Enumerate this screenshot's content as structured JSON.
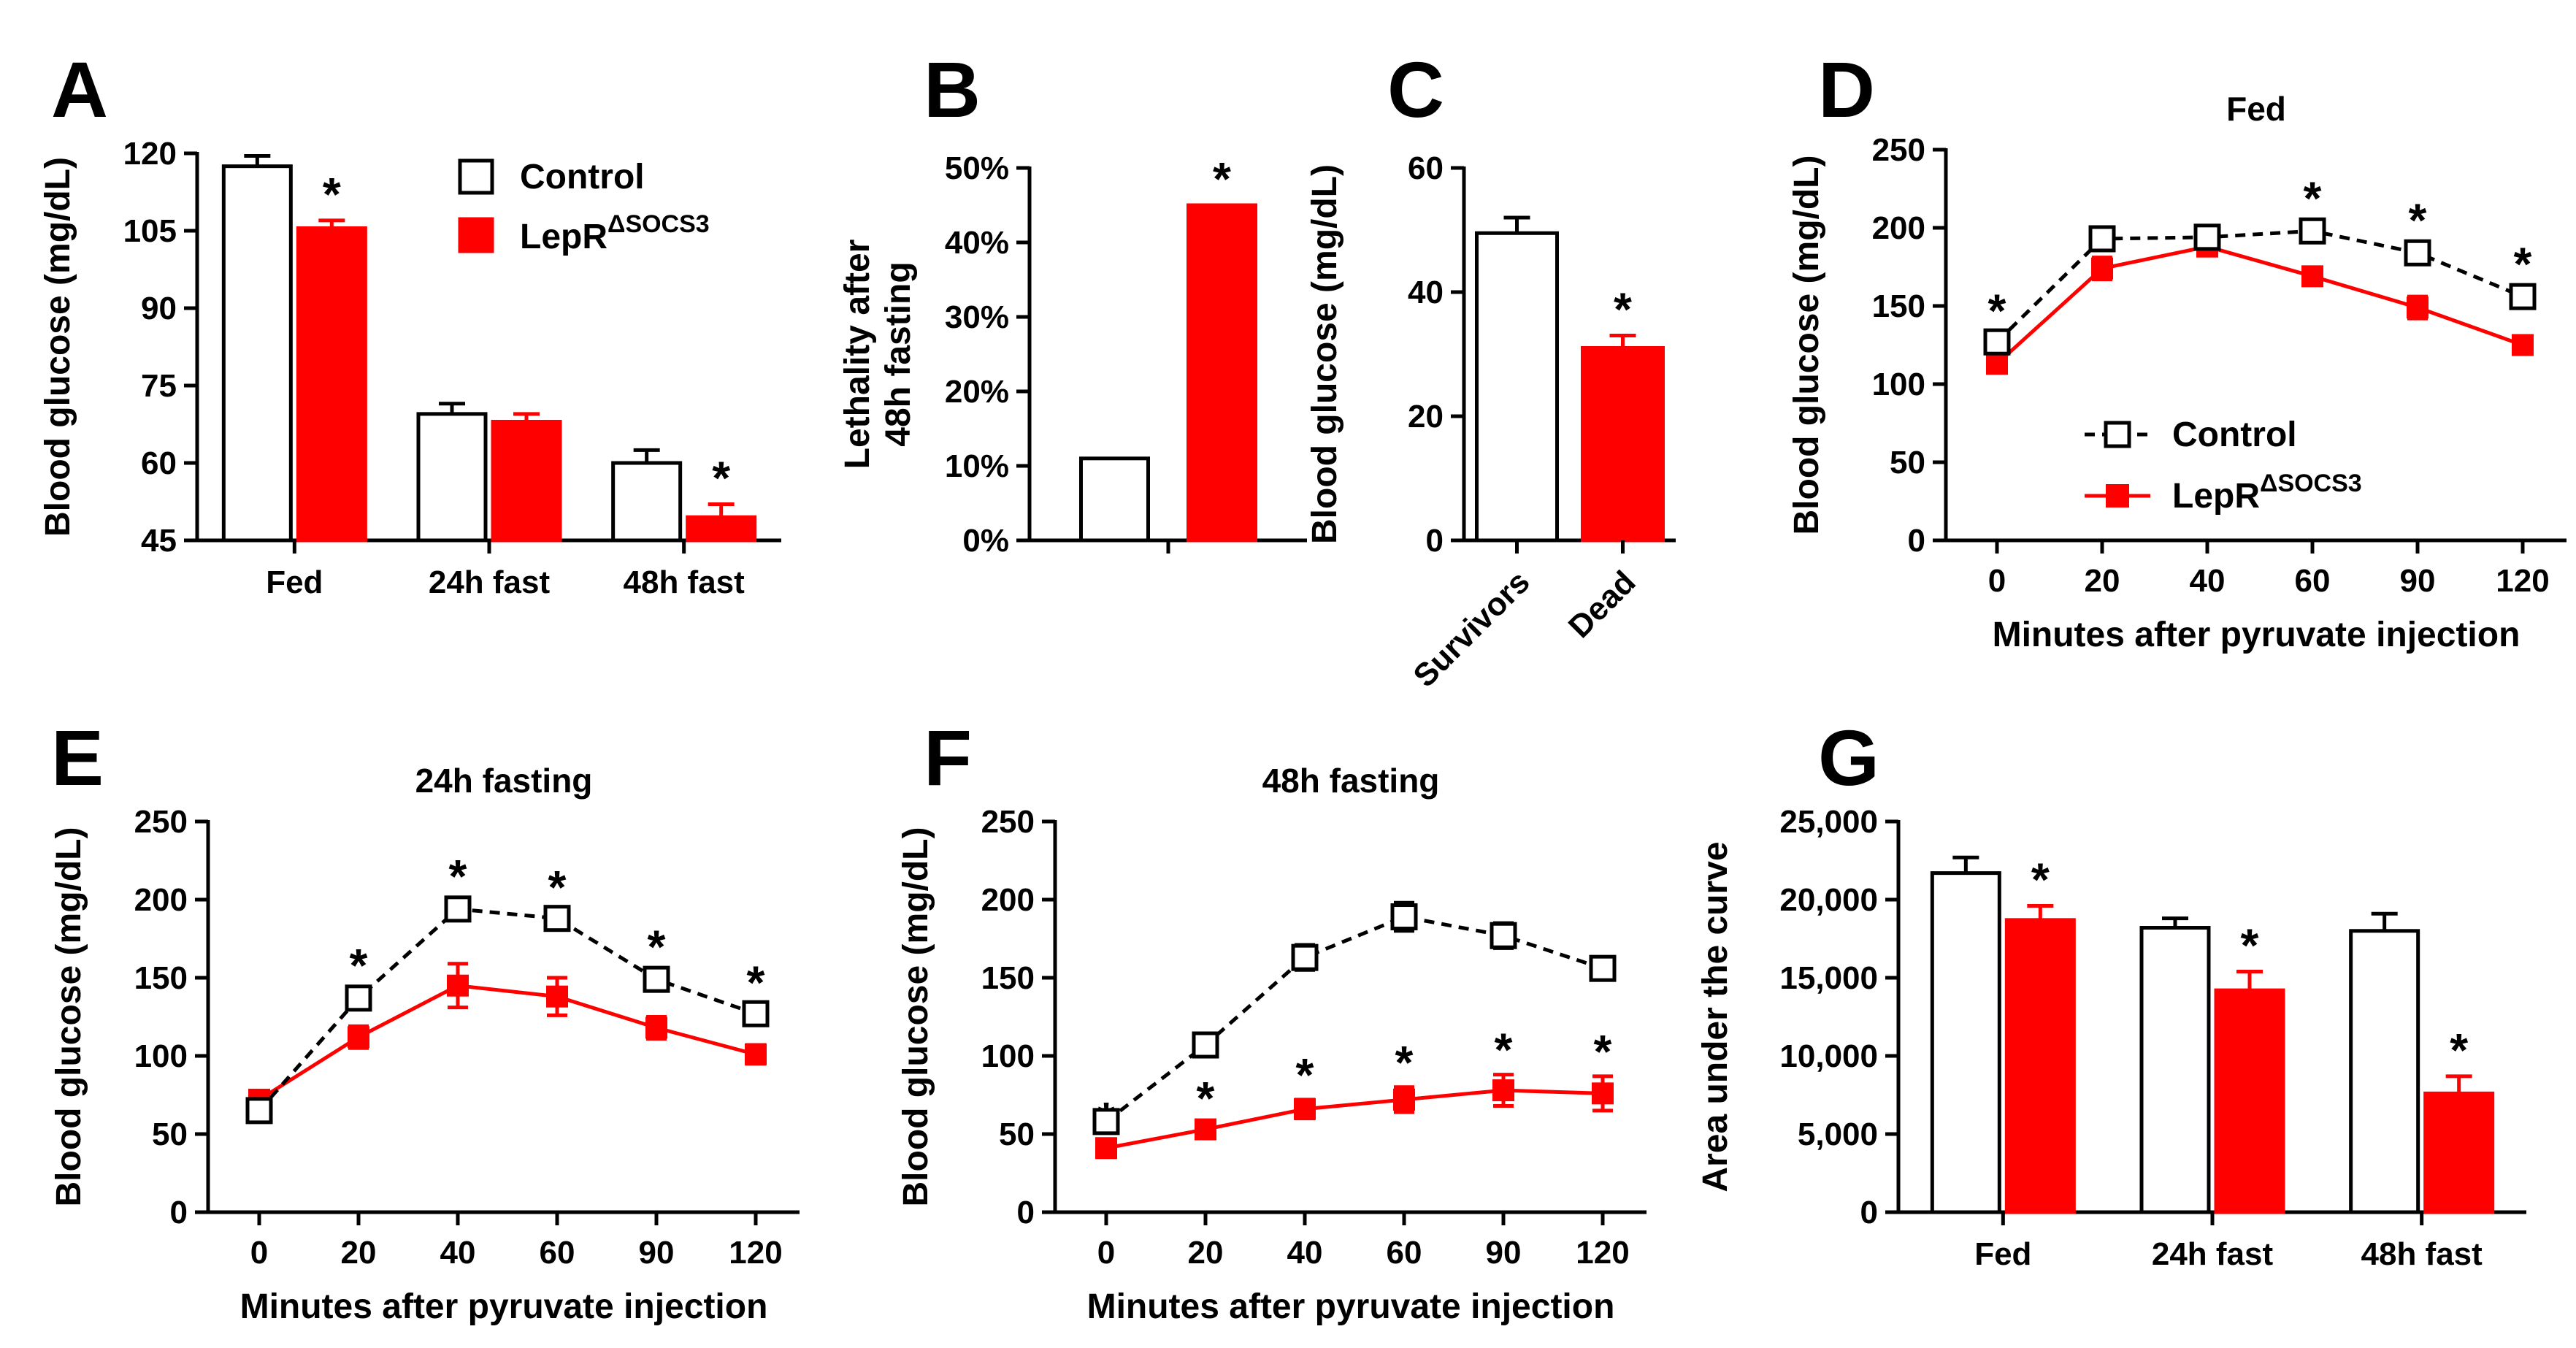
{
  "colors": {
    "control": "#000000",
    "mutant": "#ff0000",
    "control_fill": "#ffffff"
  },
  "legend": {
    "control": "Control",
    "mutant_base": "LepR",
    "mutant_sup": "ΔSOCS3"
  },
  "chart_data": [
    {
      "id": "A",
      "panel_label": "A",
      "type": "bar",
      "title": "",
      "xlabel": "",
      "ylabel": "Blood glucose (mg/dL)",
      "ylim": [
        45,
        120
      ],
      "yticks": [
        "45",
        "60",
        "75",
        "90",
        "105",
        "120"
      ],
      "categories": [
        "Fed",
        "24h fast",
        "48h fast"
      ],
      "series": [
        {
          "name": "Control",
          "values": [
            117.5,
            69.5,
            60
          ],
          "err": [
            2,
            2,
            2.5
          ],
          "sig": [
            false,
            false,
            false
          ]
        },
        {
          "name": "LepRΔSOCS3",
          "values": [
            105.5,
            68,
            49.5
          ],
          "err": [
            1.5,
            1.5,
            2.5
          ],
          "sig": [
            true,
            false,
            true
          ]
        }
      ]
    },
    {
      "id": "B",
      "panel_label": "B",
      "type": "bar",
      "title": "",
      "xlabel": "",
      "ylabel": [
        "Lethality after",
        "48h fasting"
      ],
      "ylim": [
        0,
        50
      ],
      "yticks": [
        "0%",
        "10%",
        "20%",
        "30%",
        "40%",
        "50%"
      ],
      "categories": [
        ""
      ],
      "series": [
        {
          "name": "Control",
          "values": [
            11
          ],
          "err": [
            0
          ],
          "sig": [
            false
          ]
        },
        {
          "name": "LepRΔSOCS3",
          "values": [
            45
          ],
          "err": [
            0
          ],
          "sig": [
            true
          ]
        }
      ]
    },
    {
      "id": "C",
      "panel_label": "C",
      "type": "bar",
      "title": "",
      "xlabel": "",
      "ylabel": "Blood glucose (mg/dL)",
      "ylim": [
        0,
        60
      ],
      "yticks": [
        "0",
        "20",
        "40",
        "60"
      ],
      "categories": [
        "Survivors",
        "Dead"
      ],
      "values": [
        49.5,
        31
      ],
      "err": [
        2.5,
        2
      ],
      "sig": [
        false,
        true
      ]
    },
    {
      "id": "D",
      "panel_label": "D",
      "type": "line",
      "title": "Fed",
      "xlabel": "Minutes after pyruvate injection",
      "ylabel": "Blood glucose (mg/dL)",
      "ylim": [
        0,
        250
      ],
      "yticks": [
        "0",
        "50",
        "100",
        "150",
        "200",
        "250"
      ],
      "categories": [
        "0",
        "20",
        "40",
        "60",
        "90",
        "120"
      ],
      "series": [
        {
          "name": "Control",
          "values": [
            127,
            193,
            194,
            198,
            184,
            156
          ],
          "err": [
            4,
            4,
            3,
            5,
            5,
            5
          ],
          "sig": [
            true,
            false,
            false,
            true,
            true,
            true
          ]
        },
        {
          "name": "LepRΔSOCS3",
          "values": [
            113,
            174,
            188,
            169,
            149,
            125
          ],
          "err": [
            4,
            7,
            5,
            5,
            7,
            5
          ],
          "sig": [
            false,
            false,
            false,
            false,
            false,
            false
          ]
        }
      ]
    },
    {
      "id": "E",
      "panel_label": "E",
      "type": "line",
      "title": "24h fasting",
      "xlabel": "Minutes after pyruvate injection",
      "ylabel": "Blood glucose (mg/dL)",
      "ylim": [
        0,
        250
      ],
      "yticks": [
        "0",
        "50",
        "100",
        "150",
        "200",
        "250"
      ],
      "categories": [
        "0",
        "20",
        "40",
        "60",
        "90",
        "120"
      ],
      "series": [
        {
          "name": "Control",
          "values": [
            65,
            137,
            194,
            188,
            149,
            127
          ],
          "err": [
            4,
            5,
            5,
            4,
            5,
            4
          ],
          "sig": [
            false,
            true,
            true,
            true,
            true,
            true
          ]
        },
        {
          "name": "LepRΔSOCS3",
          "values": [
            72,
            112,
            145,
            138,
            118,
            101
          ],
          "err": [
            3,
            7,
            14,
            12,
            7,
            6
          ],
          "sig": [
            false,
            false,
            false,
            false,
            false,
            false
          ]
        }
      ]
    },
    {
      "id": "F",
      "panel_label": "F",
      "type": "line",
      "title": "48h fasting",
      "xlabel": "Minutes after pyruvate injection",
      "ylabel": "Blood glucose (mg/dL)",
      "ylim": [
        0,
        250
      ],
      "yticks": [
        "0",
        "50",
        "100",
        "150",
        "200",
        "250"
      ],
      "categories": [
        "0",
        "20",
        "40",
        "60",
        "90",
        "120"
      ],
      "series": [
        {
          "name": "Control",
          "values": [
            58,
            107,
            163,
            189,
            177,
            156
          ],
          "err": [
            4,
            4,
            8,
            9,
            8,
            6
          ],
          "sig": [
            false,
            false,
            false,
            false,
            false,
            false
          ]
        },
        {
          "name": "LepRΔSOCS3",
          "values": [
            41,
            53,
            66,
            72,
            78,
            76
          ],
          "err": [
            3,
            4,
            6,
            8,
            10,
            11
          ],
          "sig": [
            true,
            true,
            true,
            true,
            true,
            true
          ]
        }
      ]
    },
    {
      "id": "G",
      "panel_label": "G",
      "type": "bar",
      "title": "",
      "xlabel": "",
      "ylabel": "Area under the curve",
      "ylim": [
        0,
        25000
      ],
      "yticks": [
        "0",
        "5,000",
        "10,000",
        "15,000",
        "20,000",
        "25,000"
      ],
      "categories": [
        "Fed",
        "24h fast",
        "48h fast"
      ],
      "series": [
        {
          "name": "Control",
          "values": [
            21700,
            18200,
            18000
          ],
          "err": [
            1000,
            600,
            1100
          ],
          "sig": [
            false,
            false,
            false
          ]
        },
        {
          "name": "LepRΔSOCS3",
          "values": [
            18700,
            14200,
            7600
          ],
          "err": [
            900,
            1200,
            1100
          ],
          "sig": [
            true,
            true,
            true
          ]
        }
      ]
    }
  ]
}
